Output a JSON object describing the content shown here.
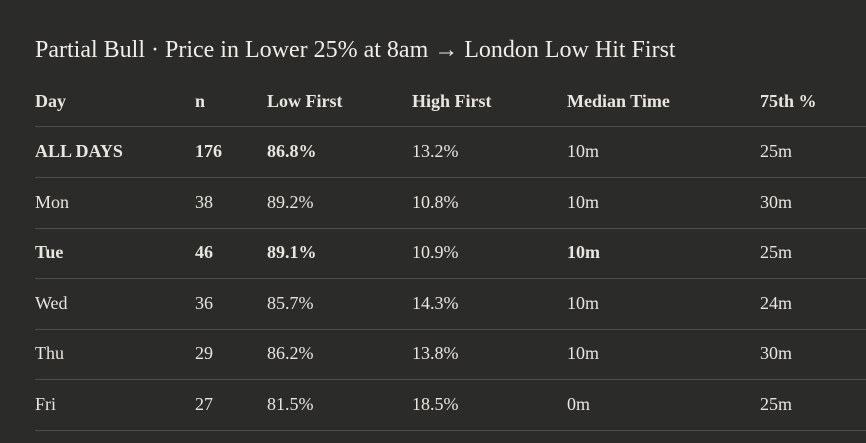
{
  "title": "Partial Bull · Price in Lower 25% at 8am → London Low Hit First",
  "table": {
    "header": [
      "Day",
      "n",
      "Low First",
      "High First",
      "Median Time",
      "75th %"
    ],
    "rows": [
      [
        "ALL DAYS",
        "176",
        "86.8%",
        "13.2%",
        "10m",
        "25m"
      ],
      [
        "Mon",
        "38",
        "89.2%",
        "10.8%",
        "10m",
        "30m"
      ],
      [
        "Tue",
        "46",
        "89.1%",
        "10.9%",
        "10m",
        "25m"
      ],
      [
        "Wed",
        "36",
        "85.7%",
        "14.3%",
        "10m",
        "24m"
      ],
      [
        "Thu",
        "29",
        "86.2%",
        "13.8%",
        "10m",
        "30m"
      ],
      [
        "Fri",
        "27",
        "81.5%",
        "18.5%",
        "0m",
        "25m"
      ]
    ]
  }
}
